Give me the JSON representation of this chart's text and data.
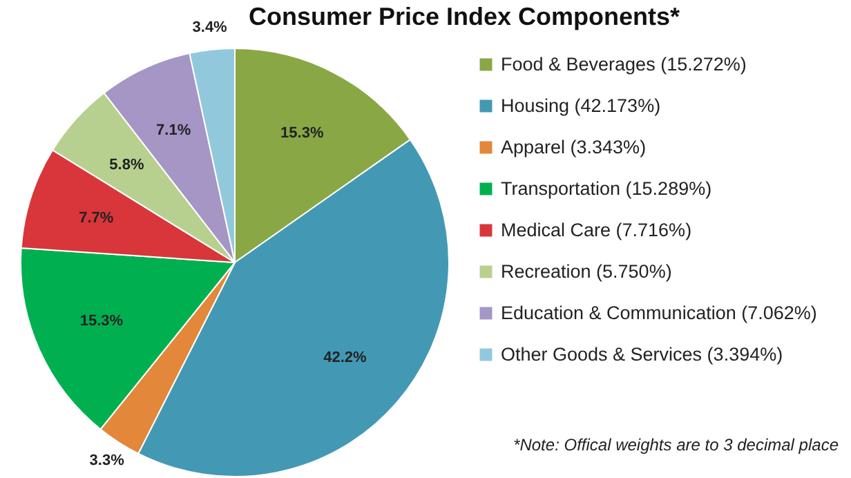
{
  "chart_data": {
    "type": "pie",
    "title": "Consumer Price Index Components*",
    "categories": [
      "Food & Beverages (15.272%)",
      "Housing (42.173%)",
      "Apparel (3.343%)",
      "Transportation (15.289%)",
      "Medical Care (7.716%)",
      "Recreation (5.750%)",
      "Education & Communication (7.062%)",
      "Other Goods & Services (3.394%)"
    ],
    "values": [
      15.272,
      42.173,
      3.343,
      15.289,
      7.716,
      5.75,
      7.062,
      3.394
    ],
    "colors": [
      "#8aa745",
      "#4399b4",
      "#e3873a",
      "#00b050",
      "#d8363b",
      "#b8d08f",
      "#a596c6",
      "#92c8dc"
    ],
    "value_labels": [
      "15.3%",
      "42.2%",
      "3.3%",
      "15.3%",
      "7.7%",
      "5.8%",
      "7.1%",
      "3.4%"
    ],
    "legend": "right",
    "annotations": [
      "*Note: Offical weights are to 3 decimal place"
    ]
  }
}
